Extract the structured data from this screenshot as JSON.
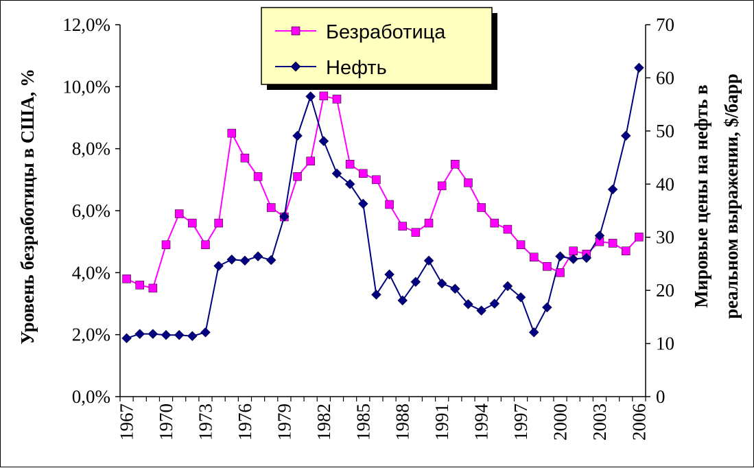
{
  "chart_data": {
    "type": "line",
    "x": [
      1967,
      1968,
      1969,
      1970,
      1971,
      1972,
      1973,
      1974,
      1975,
      1976,
      1977,
      1978,
      1979,
      1980,
      1981,
      1982,
      1983,
      1984,
      1985,
      1986,
      1987,
      1988,
      1989,
      1990,
      1991,
      1992,
      1993,
      1994,
      1995,
      1996,
      1997,
      1998,
      1999,
      2000,
      2001,
      2002,
      2003,
      2004,
      2005,
      2006
    ],
    "x_tick_labels": [
      "1967",
      "1970",
      "1973",
      "1976",
      "1979",
      "1982",
      "1985",
      "1988",
      "1991",
      "1994",
      "1997",
      "2000",
      "2003",
      "2006"
    ],
    "x_tick_values": [
      1967,
      1970,
      1973,
      1976,
      1979,
      1982,
      1985,
      1988,
      1991,
      1994,
      1997,
      2000,
      2003,
      2006
    ],
    "series": [
      {
        "name": "Безработица",
        "axis": "left",
        "color": "#ff00ff",
        "marker": "square",
        "values": [
          3.8,
          3.6,
          3.5,
          4.9,
          5.9,
          5.6,
          4.9,
          5.6,
          8.5,
          7.7,
          7.1,
          6.1,
          5.8,
          7.1,
          7.6,
          9.7,
          9.6,
          7.5,
          7.2,
          7.0,
          6.2,
          5.5,
          5.3,
          5.6,
          6.8,
          7.5,
          6.9,
          6.1,
          5.6,
          5.4,
          4.9,
          4.5,
          4.2,
          4.0,
          4.7,
          4.6,
          5.0,
          4.95,
          4.7,
          5.15
        ]
      },
      {
        "name": "Нефть",
        "axis": "right",
        "color": "#000080",
        "marker": "diamond",
        "values": [
          11.0,
          11.8,
          11.8,
          11.6,
          11.6,
          11.4,
          12.1,
          24.6,
          25.8,
          25.6,
          26.4,
          25.7,
          33.9,
          49.1,
          56.5,
          48.1,
          42.0,
          40.0,
          36.3,
          19.2,
          23.0,
          18.1,
          21.6,
          25.6,
          21.3,
          20.3,
          17.4,
          16.2,
          17.5,
          20.8,
          18.7,
          12.1,
          16.8,
          26.4,
          25.9,
          26.1,
          30.3,
          39.0,
          49.1,
          61.9
        ]
      }
    ],
    "y_left": {
      "label": "Уровень безработицы в США, %",
      "lim": [
        0,
        12
      ],
      "ticks": [
        "0,0%",
        "2,0%",
        "4,0%",
        "6,0%",
        "8,0%",
        "10,0%",
        "12,0%"
      ]
    },
    "y_right": {
      "label_lines": [
        "Мировые цены на нефть в",
        "реальном выражении, $/барр"
      ],
      "lim": [
        0,
        70
      ],
      "ticks": [
        "0",
        "10",
        "20",
        "30",
        "40",
        "50",
        "60",
        "70"
      ]
    },
    "legend": {
      "placement": "top-center",
      "background": "#ffffc0"
    },
    "grid": false
  }
}
